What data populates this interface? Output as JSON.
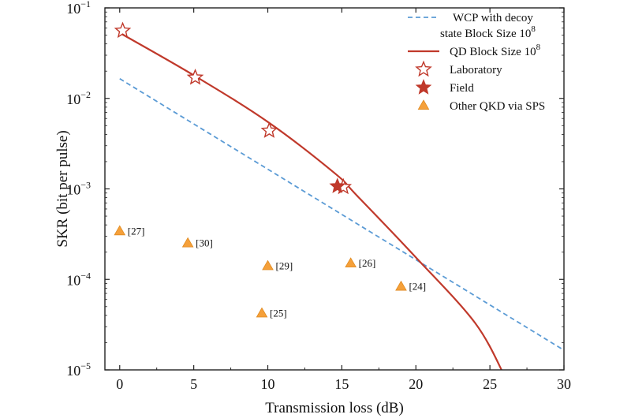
{
  "chart_data": {
    "type": "line",
    "xlabel": "Transmission loss (dB)",
    "ylabel": "SKR (bit per pulse)",
    "xlim": [
      -1,
      30
    ],
    "ylim": [
      1e-05,
      0.1
    ],
    "y_scale": "log",
    "x_ticks": [
      0,
      5,
      10,
      15,
      20,
      25,
      30
    ],
    "x_tick_labels": [
      "0",
      "5",
      "10",
      "15",
      "20",
      "25",
      "30"
    ],
    "y_ticks": [
      1e-05,
      0.0001,
      0.001,
      0.01,
      0.1
    ],
    "y_tick_labels": [
      {
        "base": "10",
        "exp": "−5"
      },
      {
        "base": "10",
        "exp": "−4"
      },
      {
        "base": "10",
        "exp": "−3"
      },
      {
        "base": "10",
        "exp": "−2"
      },
      {
        "base": "10",
        "exp": "−1"
      }
    ],
    "grid": false,
    "legend_position": "top-right",
    "legend": [
      {
        "lines": [
          "WCP with decoy",
          "state Block Size 10"
        ],
        "sup": "8",
        "marker": "dashed-line"
      },
      {
        "lines": [
          "QD Block Size 10"
        ],
        "sup": "8",
        "marker": "solid-line"
      },
      {
        "lines": [
          "Laboratory"
        ],
        "sup": "",
        "marker": "hollow-star"
      },
      {
        "lines": [
          "Field"
        ],
        "sup": "",
        "marker": "filled-star"
      },
      {
        "lines": [
          "Other QKD via SPS"
        ],
        "sup": "",
        "marker": "triangle"
      }
    ],
    "series": [
      {
        "name": "WCP with decoy state Block Size 10^8",
        "style": "dashed",
        "color": "#5b9bd5",
        "x": [
          0,
          30
        ],
        "y": [
          0.0165,
          1.65e-05
        ]
      },
      {
        "name": "QD Block Size 10^8",
        "style": "solid",
        "color": "#c0392b",
        "x": [
          0,
          5,
          10,
          14.5,
          16,
          20,
          24,
          26
        ],
        "y": [
          0.053,
          0.018,
          0.0055,
          0.0015,
          0.00085,
          0.000175,
          3.3e-05,
          8.5e-06
        ]
      },
      {
        "name": "Laboratory",
        "style": "hollow-star",
        "color": "#c0392b",
        "x": [
          0.2,
          5.1,
          10.1,
          15.1
        ],
        "y": [
          0.056,
          0.017,
          0.0044,
          0.00105
        ]
      },
      {
        "name": "Field",
        "style": "filled-star",
        "color": "#c0392b",
        "x": [
          14.7
        ],
        "y": [
          0.00107
        ]
      },
      {
        "name": "Other QKD via SPS",
        "style": "triangle",
        "color": "#f5a03a",
        "points": [
          {
            "x": 0,
            "y": 0.00034,
            "label": "[27]"
          },
          {
            "x": 4.6,
            "y": 0.00025,
            "label": "[30]"
          },
          {
            "x": 10,
            "y": 0.00014,
            "label": "[29]"
          },
          {
            "x": 15.6,
            "y": 0.00015,
            "label": "[26]"
          },
          {
            "x": 9.6,
            "y": 4.2e-05,
            "label": "[25]"
          },
          {
            "x": 19,
            "y": 8.3e-05,
            "label": "[24]"
          }
        ]
      }
    ]
  }
}
